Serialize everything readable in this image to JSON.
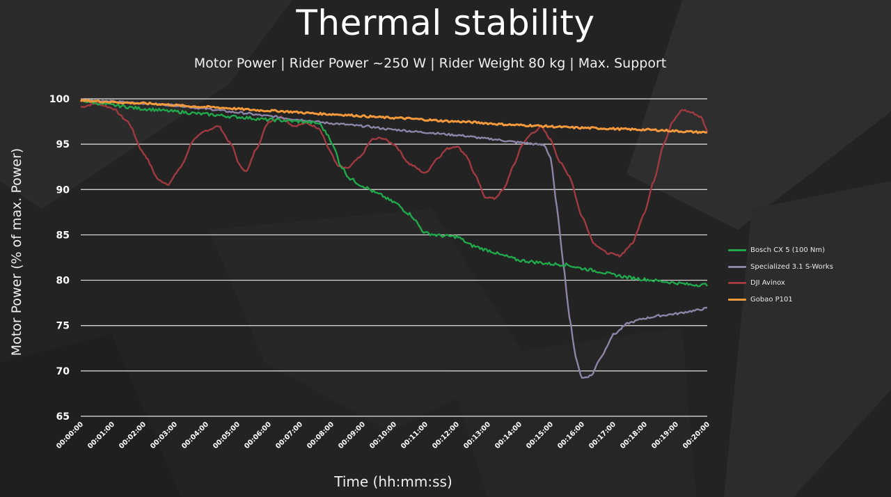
{
  "chart_data": {
    "type": "line",
    "title": "Thermal stability",
    "subtitle": "Motor Power | Rider Power ~250 W | Rider Weight 80 kg  |  Max. Support",
    "xlabel": "Time (hh:mm:ss)",
    "ylabel": "Motor Power (% of max. Power)",
    "ylim": [
      65,
      100
    ],
    "yticks": [
      "100",
      "95",
      "90",
      "85",
      "80",
      "75",
      "70",
      "65"
    ],
    "xlim_minutes": [
      0,
      20
    ],
    "xticks": [
      "00:00:00",
      "00:01:00",
      "00:02:00",
      "00:03:00",
      "00:04:00",
      "00:05:00",
      "00:06:00",
      "00:07:00",
      "00:08:00",
      "00:09:00",
      "00:10:00",
      "00:11:00",
      "00:12:00",
      "00:13:00",
      "00:14:00",
      "00:15:00",
      "00:16:00",
      "00:17:00",
      "00:18:00",
      "00:19:00",
      "00:20:00"
    ],
    "grid": true,
    "legend_position": "right",
    "series": [
      {
        "name": "Bosch CX 5 (100 Nm)",
        "color": "#21a84a",
        "points": [
          [
            0,
            99.8
          ],
          [
            1,
            99.3
          ],
          [
            2,
            98.9
          ],
          [
            3,
            98.6
          ],
          [
            4,
            98.3
          ],
          [
            5,
            98.0
          ],
          [
            6,
            97.7
          ],
          [
            7,
            97.5
          ],
          [
            7.6,
            97.3
          ],
          [
            7.9,
            96.0
          ],
          [
            8.1,
            94.5
          ],
          [
            8.3,
            92.6
          ],
          [
            8.6,
            91.2
          ],
          [
            9,
            90.4
          ],
          [
            9.5,
            89.5
          ],
          [
            10,
            88.6
          ],
          [
            10.5,
            87.3
          ],
          [
            11,
            85.2
          ],
          [
            11.5,
            84.9
          ],
          [
            12,
            84.8
          ],
          [
            12.5,
            83.8
          ],
          [
            13,
            83.3
          ],
          [
            13.5,
            82.7
          ],
          [
            14,
            82.2
          ],
          [
            14.5,
            82.0
          ],
          [
            15,
            81.8
          ],
          [
            15.5,
            81.7
          ],
          [
            16,
            81.3
          ],
          [
            16.5,
            81.0
          ],
          [
            17,
            80.6
          ],
          [
            17.5,
            80.3
          ],
          [
            18,
            80.1
          ],
          [
            18.5,
            79.9
          ],
          [
            19,
            79.7
          ],
          [
            19.5,
            79.5
          ],
          [
            20,
            79.5
          ]
        ]
      },
      {
        "name": "Specialized  3.1 S-Works",
        "color": "#8e84a8",
        "points": [
          [
            0,
            99.9
          ],
          [
            1,
            99.7
          ],
          [
            2,
            99.5
          ],
          [
            3,
            99.3
          ],
          [
            4,
            98.9
          ],
          [
            5,
            98.5
          ],
          [
            6,
            98.1
          ],
          [
            7,
            97.7
          ],
          [
            8,
            97.3
          ],
          [
            9,
            97.0
          ],
          [
            10,
            96.6
          ],
          [
            11,
            96.3
          ],
          [
            12,
            96.0
          ],
          [
            13,
            95.6
          ],
          [
            14,
            95.2
          ],
          [
            14.8,
            94.9
          ],
          [
            15.0,
            93.5
          ],
          [
            15.2,
            88.0
          ],
          [
            15.4,
            82.0
          ],
          [
            15.6,
            76.0
          ],
          [
            15.8,
            71.5
          ],
          [
            16,
            69.2
          ],
          [
            16.3,
            69.5
          ],
          [
            16.6,
            71.5
          ],
          [
            17,
            74.0
          ],
          [
            17.5,
            75.3
          ],
          [
            18,
            75.8
          ],
          [
            18.5,
            76.1
          ],
          [
            19,
            76.3
          ],
          [
            19.5,
            76.6
          ],
          [
            20,
            76.9
          ]
        ]
      },
      {
        "name": "DJI Avinox",
        "color": "#a03a40",
        "points": [
          [
            0,
            99.1
          ],
          [
            0.5,
            99.5
          ],
          [
            1,
            99.0
          ],
          [
            1.5,
            97.5
          ],
          [
            2,
            94.0
          ],
          [
            2.5,
            91.0
          ],
          [
            2.8,
            90.6
          ],
          [
            3.2,
            92.5
          ],
          [
            3.6,
            95.5
          ],
          [
            4,
            96.5
          ],
          [
            4.4,
            97.0
          ],
          [
            4.8,
            95.0
          ],
          [
            5.1,
            92.5
          ],
          [
            5.3,
            92.0
          ],
          [
            5.6,
            94.5
          ],
          [
            6,
            97.5
          ],
          [
            6.4,
            98.0
          ],
          [
            6.8,
            97.0
          ],
          [
            7.2,
            97.3
          ],
          [
            7.6,
            96.8
          ],
          [
            8,
            94.0
          ],
          [
            8.2,
            92.6
          ],
          [
            8.5,
            92.3
          ],
          [
            8.9,
            93.5
          ],
          [
            9.3,
            95.5
          ],
          [
            9.6,
            95.7
          ],
          [
            10,
            95.0
          ],
          [
            10.5,
            92.8
          ],
          [
            11,
            91.8
          ],
          [
            11.4,
            93.5
          ],
          [
            11.7,
            94.5
          ],
          [
            12,
            94.8
          ],
          [
            12.3,
            93.8
          ],
          [
            12.6,
            91.5
          ],
          [
            12.9,
            89.2
          ],
          [
            13.2,
            89.0
          ],
          [
            13.5,
            90.0
          ],
          [
            13.8,
            92.5
          ],
          [
            14.1,
            95.0
          ],
          [
            14.4,
            96.2
          ],
          [
            14.7,
            96.9
          ],
          [
            15,
            95.5
          ],
          [
            15.3,
            93.0
          ],
          [
            15.6,
            91.5
          ],
          [
            16,
            87.0
          ],
          [
            16.4,
            84.0
          ],
          [
            16.8,
            83.0
          ],
          [
            17.2,
            82.7
          ],
          [
            17.6,
            84.0
          ],
          [
            18,
            87.5
          ],
          [
            18.3,
            91.0
          ],
          [
            18.6,
            95.0
          ],
          [
            18.9,
            97.5
          ],
          [
            19.2,
            98.8
          ],
          [
            19.5,
            98.5
          ],
          [
            19.8,
            98.0
          ],
          [
            20,
            96.5
          ]
        ]
      },
      {
        "name": "Gobao P101",
        "color": "#f59a3c",
        "points": [
          [
            0,
            99.8
          ],
          [
            2,
            99.5
          ],
          [
            4,
            99.1
          ],
          [
            6,
            98.7
          ],
          [
            8,
            98.3
          ],
          [
            10,
            97.9
          ],
          [
            12,
            97.5
          ],
          [
            14,
            97.1
          ],
          [
            16,
            96.8
          ],
          [
            18,
            96.6
          ],
          [
            20,
            96.3
          ]
        ]
      }
    ]
  }
}
